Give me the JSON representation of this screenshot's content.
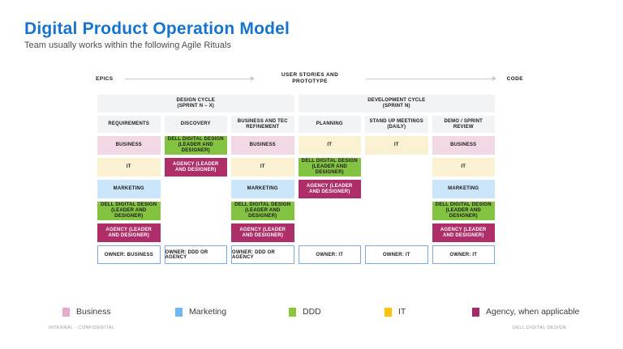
{
  "title": "Digital Product Operation Model",
  "subtitle": "Team usually works within the following Agile Rituals",
  "flow": {
    "epics": "EPICS",
    "middle": [
      "USER STORIES AND",
      "PROTOTYPE"
    ],
    "code": "CODE"
  },
  "cycles": {
    "design": {
      "line1": "DESIGN CYCLE",
      "line2": "(SPRINT N – X)"
    },
    "development": {
      "line1": "DEVELOPMENT CYCLE",
      "line2": "(SPRINT N)"
    }
  },
  "columns": [
    {
      "header": "REQUIREMENTS",
      "cells": [
        {
          "type": "business",
          "label": "BUSINESS"
        },
        {
          "type": "it",
          "label": "IT"
        },
        {
          "type": "marketing",
          "label": "MARKETING"
        },
        {
          "type": "ddd",
          "label": "DELL DIGITAL DESIGN (LEADER AND DESIGNER)"
        },
        {
          "type": "agency",
          "label": "AGENCY (LEADER AND DESIGNER)"
        }
      ],
      "owner": "OWNER: BUSINESS"
    },
    {
      "header": "DISCOVERY",
      "cells": [
        {
          "type": "ddd",
          "label": "DELL DIGITAL DESIGN (LEADER AND DESIGNER)"
        },
        {
          "type": "agency",
          "label": "AGENCY (LEADER AND DESIGNER)"
        },
        {
          "type": "empty",
          "label": ""
        },
        {
          "type": "empty",
          "label": ""
        },
        {
          "type": "empty",
          "label": ""
        }
      ],
      "owner": "OWNER: DDD OR AGENCY"
    },
    {
      "header": "BUSINESS AND TEC REFINEMENT",
      "cells": [
        {
          "type": "business",
          "label": "BUSINESS"
        },
        {
          "type": "it",
          "label": "IT"
        },
        {
          "type": "marketing",
          "label": "MARKETING"
        },
        {
          "type": "ddd",
          "label": "DELL DIGITAL DESIGN (LEADER AND DESIGNER)"
        },
        {
          "type": "agency",
          "label": "AGENCY (LEADER AND DESIGNER)"
        }
      ],
      "owner": "OWNER: DDD OR AGENCY"
    },
    {
      "header": "PLANNING",
      "cells": [
        {
          "type": "it",
          "label": "IT"
        },
        {
          "type": "ddd",
          "label": "DELL DIGITAL DESIGN (LEADER AND DESIGNER)"
        },
        {
          "type": "agency",
          "label": "AGENCY (LEADER AND DESIGNER)"
        },
        {
          "type": "empty",
          "label": ""
        },
        {
          "type": "empty",
          "label": ""
        }
      ],
      "owner": "OWNER: IT"
    },
    {
      "header": "STAND UP MEETINGS (DAILY)",
      "cells": [
        {
          "type": "it",
          "label": "IT"
        },
        {
          "type": "empty",
          "label": ""
        },
        {
          "type": "empty",
          "label": ""
        },
        {
          "type": "empty",
          "label": ""
        },
        {
          "type": "empty",
          "label": ""
        }
      ],
      "owner": "OWNER: IT"
    },
    {
      "header": "DEMO / SPRINT REVIEW",
      "cells": [
        {
          "type": "business",
          "label": "BUSINESS"
        },
        {
          "type": "it",
          "label": "IT"
        },
        {
          "type": "marketing",
          "label": "MARKETING"
        },
        {
          "type": "ddd",
          "label": "DELL DIGITAL DESIGN (LEADER AND DESIGNER)"
        },
        {
          "type": "agency",
          "label": "AGENCY (LEADER AND DESIGNER)"
        }
      ],
      "owner": "OWNER: IT"
    }
  ],
  "legend": {
    "items": [
      {
        "label": "Business",
        "color": "#E8A9CC"
      },
      {
        "label": "Marketing",
        "color": "#70B7F1"
      },
      {
        "label": "DDD",
        "color": "#8CC63E"
      },
      {
        "label": "IT",
        "color": "#FFC20D"
      },
      {
        "label": "Agency, when applicable",
        "color": "#A52A68"
      }
    ]
  },
  "footer": {
    "left": "INTERNAL - CONFIDENTIAL",
    "right": "DELL DIGITAL DESIGN"
  },
  "colors": {
    "title_accent": "#1673D1",
    "business_cell": "#F2D7E5",
    "it_cell": "#FAF1D3",
    "marketing_cell": "#CBE6FA",
    "ddd_cell": "#83C341",
    "agency_cell": "#AD2E68",
    "header_bg": "#F2F3F5",
    "owner_border": "#7FA9DC",
    "arrow": "#C9C9C9"
  }
}
